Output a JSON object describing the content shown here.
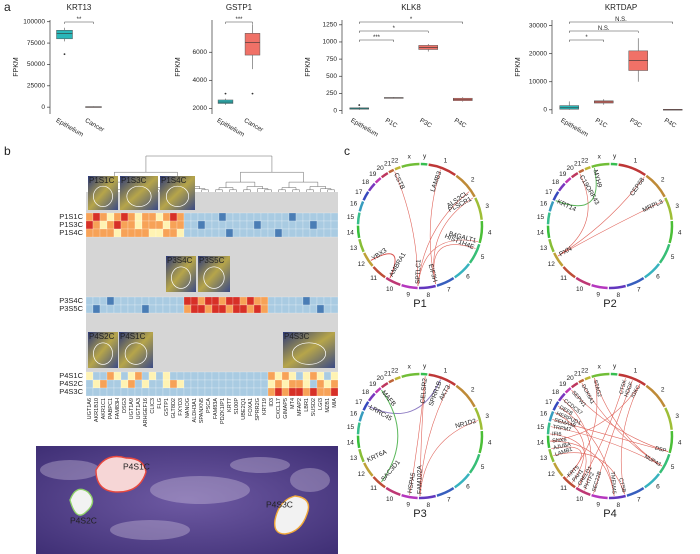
{
  "panel_labels": [
    "a",
    "b",
    "c"
  ],
  "chart_data": [
    {
      "type": "box",
      "title": "KRT13",
      "y_label": "FPKM",
      "categories": [
        "Epithelium",
        "Cancer"
      ],
      "colors": [
        "#2ab7b9",
        "#f07167"
      ],
      "boxes": [
        {
          "min": 77000,
          "q1": 80000,
          "median": 86000,
          "q3": 90000,
          "max": 93000,
          "outliers": [
            62000
          ]
        },
        {
          "min": 0,
          "q1": 0,
          "median": 200,
          "q3": 600,
          "max": 900,
          "outliers": []
        }
      ],
      "ylim": [
        -8000,
        102000
      ],
      "yticks": [
        0,
        25000,
        50000,
        75000,
        100000
      ],
      "significance": [
        {
          "between": [
            "Epithelium",
            "Cancer"
          ],
          "label": "**"
        }
      ]
    },
    {
      "type": "box",
      "title": "GSTP1",
      "y_label": "FPKM",
      "categories": [
        "Epithelium",
        "Cancer"
      ],
      "colors": [
        "#2ab7b9",
        "#f07167"
      ],
      "boxes": [
        {
          "min": 2250,
          "q1": 2350,
          "median": 2450,
          "q3": 2600,
          "max": 2700,
          "outliers": [
            3050
          ]
        },
        {
          "min": 4800,
          "q1": 5800,
          "median": 6700,
          "q3": 7350,
          "max": 8000,
          "outliers": [
            3050
          ]
        }
      ],
      "ylim": [
        1600,
        8300
      ],
      "yticks": [
        2000,
        4000,
        6000
      ],
      "significance": [
        {
          "between": [
            "Epithelium",
            "Cancer"
          ],
          "label": "***"
        }
      ]
    },
    {
      "type": "box",
      "title": "KLK8",
      "y_label": "FPKM",
      "categories": [
        "Epithelium",
        "P1C",
        "P3C",
        "P4C"
      ],
      "colors": [
        "#2ab7b9",
        "#f07167",
        "#f07167",
        "#f07167"
      ],
      "boxes": [
        {
          "min": 10,
          "q1": 20,
          "median": 30,
          "q3": 40,
          "max": 50,
          "outliers": [
            80
          ]
        },
        {
          "min": 175,
          "q1": 180,
          "median": 185,
          "q3": 190,
          "max": 195,
          "outliers": []
        },
        {
          "min": 860,
          "q1": 890,
          "median": 920,
          "q3": 950,
          "max": 970,
          "outliers": []
        },
        {
          "min": 130,
          "q1": 145,
          "median": 165,
          "q3": 180,
          "max": 195,
          "outliers": []
        }
      ],
      "ylim": [
        -50,
        1320
      ],
      "yticks": [
        0,
        250,
        500,
        750,
        1000,
        1250
      ],
      "significance": [
        {
          "between": [
            "Epithelium",
            "P1C"
          ],
          "label": "***"
        },
        {
          "between": [
            "Epithelium",
            "P3C"
          ],
          "label": "*"
        },
        {
          "between": [
            "Epithelium",
            "P4C"
          ],
          "label": "*"
        }
      ]
    },
    {
      "type": "box",
      "title": "KRTDAP",
      "y_label": "FPKM",
      "categories": [
        "Epithelium",
        "P1C",
        "P3C",
        "P4C"
      ],
      "colors": [
        "#2ab7b9",
        "#f07167",
        "#f07167",
        "#f07167"
      ],
      "boxes": [
        {
          "min": 0,
          "q1": 200,
          "median": 700,
          "q3": 1500,
          "max": 3000,
          "outliers": []
        },
        {
          "min": 1800,
          "q1": 2400,
          "median": 2800,
          "q3": 3200,
          "max": 3800,
          "outliers": []
        },
        {
          "min": 10000,
          "q1": 14000,
          "median": 17500,
          "q3": 21000,
          "max": 25500,
          "outliers": []
        },
        {
          "min": 0,
          "q1": 50,
          "median": 100,
          "q3": 150,
          "max": 200,
          "outliers": []
        }
      ],
      "ylim": [
        -1500,
        32000
      ],
      "yticks": [
        0,
        10000,
        20000,
        30000
      ],
      "significance": [
        {
          "between": [
            "Epithelium",
            "P1C"
          ],
          "label": "*"
        },
        {
          "between": [
            "Epithelium",
            "P3C"
          ],
          "label": "N.S."
        },
        {
          "between": [
            "Epithelium",
            "P4C"
          ],
          "label": "N.S."
        }
      ]
    }
  ],
  "heatmap": {
    "columns": [
      "UGT1A6",
      "AKR1B10",
      "AKR1C1",
      "PABPC1",
      "FAM83H",
      "DSG3",
      "UGT1A9",
      "UGT1A3",
      "ARHGEF16",
      "CLIC3",
      "FLG",
      "GSTP1",
      "GLT8D2",
      "FXYD3",
      "NANOG",
      "ALDH3A1",
      "SPANXN5",
      "PSCA",
      "FAM83A",
      "PDZK1IP1",
      "KRT7",
      "S100P",
      "UBE2Q1",
      "FOXA1",
      "SPRR2G",
      "KRT19",
      "ID3",
      "CXCL17",
      "GIMAP5",
      "MT4",
      "MFAP2",
      "LBR1",
      "SUSD2",
      "LGI3",
      "MZB1",
      "MIA"
    ],
    "rows": [
      "P1S1C",
      "P1S3C",
      "P1S4C",
      "P3S4C",
      "P3S5C",
      "P4S1C",
      "P4S2C",
      "P4S3C"
    ],
    "values": [
      [
        1,
        2,
        1,
        0,
        1,
        2,
        1,
        0,
        1,
        1,
        0,
        1,
        2,
        1,
        -1,
        -1,
        -1,
        -1,
        -1,
        -2,
        -1,
        -1,
        -1,
        -1,
        -1,
        -1,
        -1,
        -1,
        -1,
        -2,
        -1,
        -1,
        -1,
        -1,
        -1,
        -1
      ],
      [
        2,
        1,
        0,
        1,
        2,
        1,
        1,
        0,
        1,
        1,
        1,
        0,
        1,
        1,
        -1,
        -1,
        -2,
        -1,
        -1,
        -1,
        -1,
        -1,
        -1,
        -1,
        -2,
        -1,
        -1,
        -1,
        -1,
        -1,
        -1,
        -1,
        -2,
        -1,
        -1,
        -1
      ],
      [
        1,
        1,
        1,
        1,
        0,
        1,
        1,
        1,
        1,
        0,
        0,
        1,
        1,
        0,
        -1,
        -1,
        -1,
        -1,
        -1,
        -1,
        -2,
        -1,
        -1,
        -1,
        -1,
        -1,
        -1,
        -2,
        -1,
        -1,
        -1,
        -1,
        -1,
        -1,
        -1,
        -1
      ],
      [
        -1,
        -1,
        -1,
        -2,
        -1,
        -1,
        -1,
        -1,
        -1,
        -1,
        -1,
        -1,
        -1,
        -1,
        2,
        2,
        1,
        2,
        2,
        1,
        2,
        2,
        1,
        2,
        1,
        1,
        -1,
        -1,
        -1,
        -1,
        -1,
        -2,
        -1,
        -1,
        -1,
        -1
      ],
      [
        -1,
        -2,
        -1,
        -1,
        -1,
        -1,
        -1,
        -1,
        -2,
        -1,
        -1,
        -1,
        -1,
        -1,
        1,
        2,
        2,
        1,
        2,
        2,
        1,
        2,
        2,
        1,
        2,
        1,
        -1,
        -1,
        -1,
        -1,
        -1,
        -1,
        -1,
        -2,
        -1,
        -1
      ],
      [
        0,
        -1,
        -1,
        1,
        0,
        -1,
        0,
        1,
        -1,
        0,
        -1,
        0,
        -1,
        -1,
        -1,
        -1,
        -1,
        -1,
        -1,
        -1,
        -1,
        -1,
        -1,
        -1,
        -1,
        -1,
        1,
        0,
        1,
        0,
        -1,
        0,
        1,
        0,
        -1,
        0
      ],
      [
        -1,
        0,
        1,
        -1,
        -1,
        0,
        1,
        -1,
        0,
        -1,
        -1,
        0,
        1,
        0,
        -1,
        -1,
        -1,
        -1,
        -1,
        -1,
        -1,
        -1,
        -1,
        -1,
        -1,
        -1,
        0,
        1,
        0,
        1,
        1,
        0,
        -1,
        1,
        0,
        1
      ],
      [
        -1,
        -1,
        -1,
        -1,
        -1,
        -1,
        -1,
        -1,
        -1,
        -1,
        -1,
        -1,
        -1,
        -1,
        -1,
        -1,
        -1,
        -1,
        -1,
        -1,
        -1,
        -1,
        -1,
        -1,
        -1,
        -1,
        1,
        2,
        1,
        2,
        2,
        1,
        2,
        1,
        1,
        2
      ]
    ]
  },
  "images": [
    {
      "label": "P1S1C",
      "color": "#ffffff"
    },
    {
      "label": "P1S3C",
      "color": "#ffffff"
    },
    {
      "label": "P1S4C",
      "color": "#ffffff"
    },
    {
      "label": "P3S4C",
      "color": "#ffffff"
    },
    {
      "label": "P3S5C",
      "color": "#ffffff"
    },
    {
      "label": "P4S2C",
      "color": "#8fd16a"
    },
    {
      "label": "P4S1C",
      "color": "#e8483f"
    },
    {
      "label": "P4S3C",
      "color": "#f0a83a"
    }
  ],
  "he_labels": [
    {
      "label": "P4S1C",
      "color": "#e8483f"
    },
    {
      "label": "P4S2C",
      "color": "#8fd16a"
    },
    {
      "label": "P4S3C",
      "color": "#f0a83a"
    }
  ],
  "circos": {
    "chromosomes": [
      "1",
      "2",
      "3",
      "4",
      "5",
      "6",
      "7",
      "8",
      "9",
      "10",
      "11",
      "12",
      "13",
      "14",
      "15",
      "16",
      "17",
      "18",
      "19",
      "20",
      "21",
      "22",
      "x",
      "y"
    ],
    "plots": [
      {
        "title": "P1",
        "genes": [
          "CSTB",
          "LAMB3",
          "ALS2CL",
          "PLSCR1",
          "B4GALT1",
          "HIST1H4E",
          "EIF3H",
          "SPTLC1",
          "AMBRA1",
          "YBX3"
        ]
      },
      {
        "title": "P2",
        "genes": [
          "MYH9",
          "C19ORF43",
          "KRT14",
          "CEP68",
          "MRPL3",
          "PXN"
        ]
      },
      {
        "title": "P3",
        "genes": [
          "CELSR2",
          "SPRR1B",
          "AKT3",
          "NR1D2",
          "MAFB",
          "LRRC45",
          "KRT6A",
          "SAC3D1",
          "HSPA5",
          "FAM102A"
        ]
      },
      {
        "title": "P4",
        "genes": [
          "STAG2",
          "CTSK",
          "HDGF",
          "IGKC",
          "DCK6A1",
          "SEPW1",
          "CCDC57",
          "DEF8",
          "HERPUD1",
          "SEMA4B",
          "TRPM7",
          "IFI6",
          "SNX6",
          "AJUBA",
          "LAMB1",
          "KRT5",
          "PAH1",
          "CRELD1",
          "PHTF2",
          "SEC22B",
          "TMEM45",
          "CTSB",
          "NUP43",
          "DSP"
        ]
      }
    ]
  }
}
